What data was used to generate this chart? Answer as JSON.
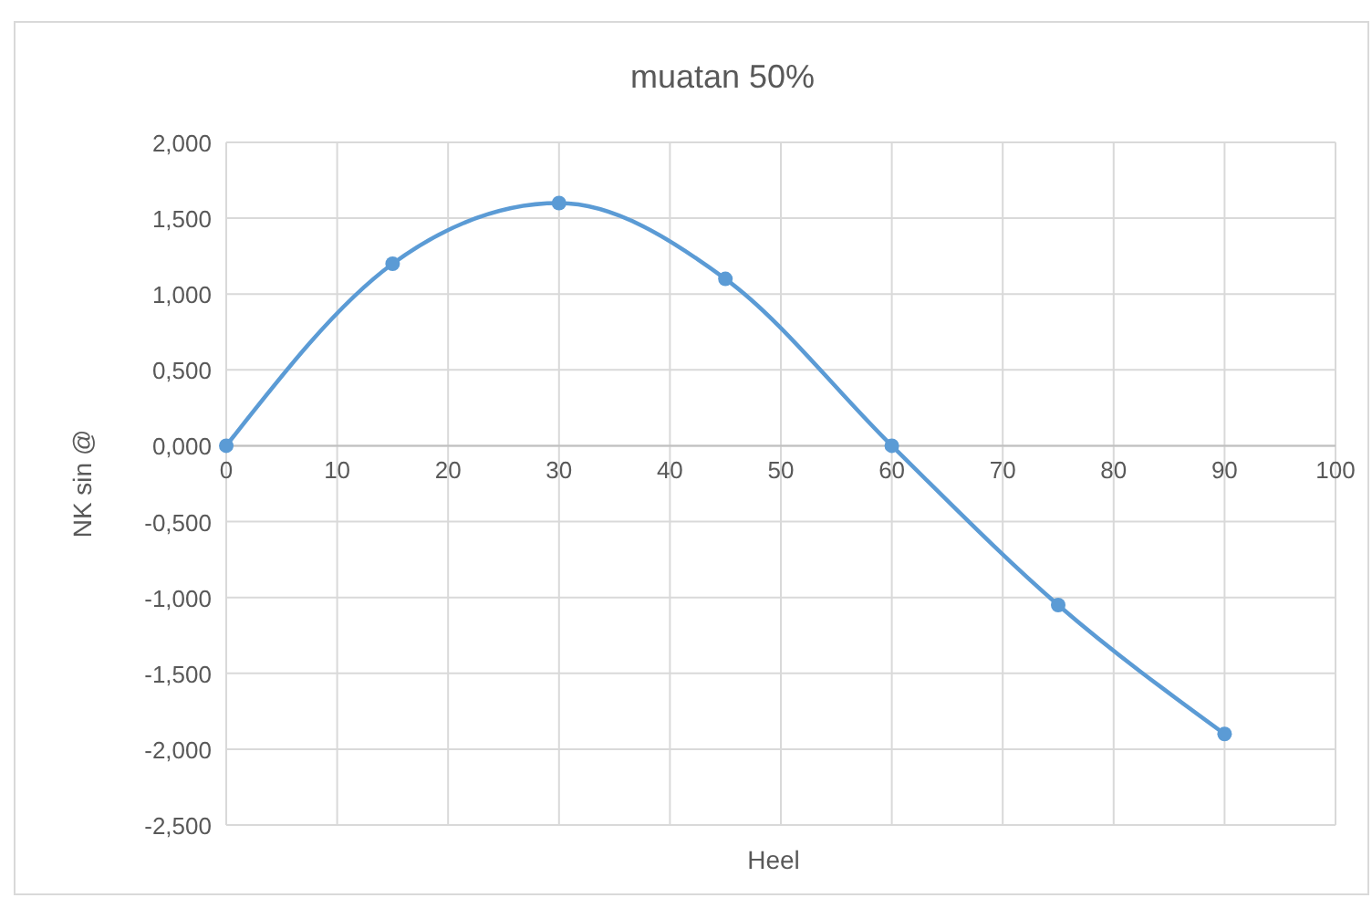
{
  "chart_data": {
    "type": "line",
    "title": "muatan 50%",
    "xlabel": "Heel",
    "ylabel": "NK sin @",
    "x": [
      0,
      15,
      30,
      45,
      60,
      75,
      90
    ],
    "series": [
      {
        "color": "#5b9bd5",
        "values": [
          0,
          1.2,
          1.6,
          1.1,
          0,
          -1.05,
          -1.9
        ]
      }
    ],
    "xlim": [
      0,
      100
    ],
    "xticks": [
      0,
      10,
      20,
      30,
      40,
      50,
      60,
      70,
      80,
      90,
      100
    ],
    "ylim": [
      -2.5,
      2
    ],
    "yticks": [
      {
        "value": -2.5,
        "label": "-2,500"
      },
      {
        "value": -2,
        "label": "-2,000"
      },
      {
        "value": -1.5,
        "label": "-1,500"
      },
      {
        "value": -1,
        "label": "-1,000"
      },
      {
        "value": -0.5,
        "label": "-0,500"
      },
      {
        "value": 0,
        "label": "0,000"
      },
      {
        "value": 0.5,
        "label": "0,500"
      },
      {
        "value": 1,
        "label": "1,000"
      },
      {
        "value": 1.5,
        "label": "1,500"
      },
      {
        "value": 2,
        "label": "2,000"
      }
    ],
    "grid": true,
    "marker": "circle",
    "line_style": "solid"
  }
}
